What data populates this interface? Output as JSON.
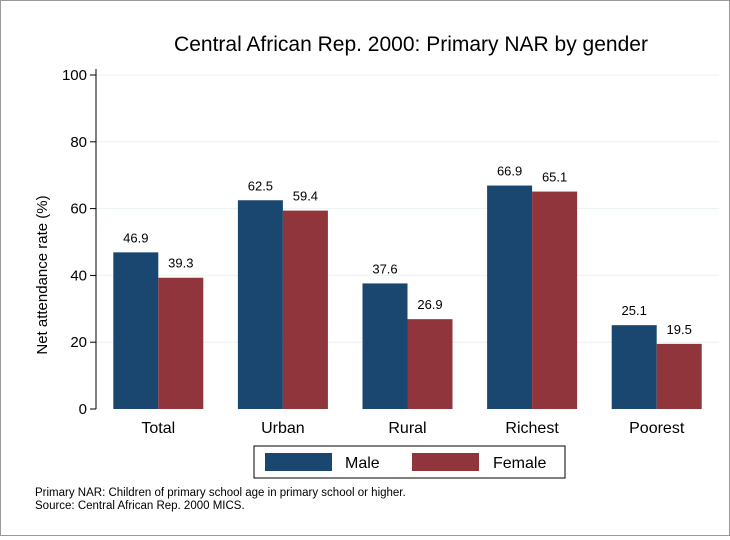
{
  "chart_data": {
    "type": "bar",
    "title": "Central African Rep. 2000: Primary NAR by gender",
    "ylabel": "Net attendance rate (%)",
    "xlabel": "",
    "categories": [
      "Total",
      "Urban",
      "Rural",
      "Richest",
      "Poorest"
    ],
    "series": [
      {
        "name": "Male",
        "color": "#1a476f",
        "values": [
          46.9,
          62.5,
          37.6,
          66.9,
          25.1
        ]
      },
      {
        "name": "Female",
        "color": "#90353b",
        "values": [
          39.3,
          59.4,
          26.9,
          65.1,
          19.5
        ]
      }
    ],
    "ylim": [
      0,
      100
    ],
    "yticks": [
      0,
      20,
      40,
      60,
      80,
      100
    ],
    "grid": true,
    "legend_position": "bottom",
    "data_labels": true
  },
  "notes": {
    "line1": "Primary NAR: Children of primary school age in primary school or higher.",
    "line2": "Source: Central African Rep. 2000 MICS."
  }
}
